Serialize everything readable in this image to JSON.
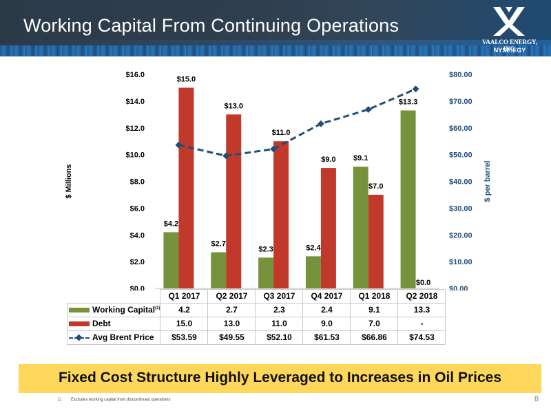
{
  "slide": {
    "title": "Working Capital From Continuing Operations",
    "page_number": "8",
    "banner": "Fixed Cost Structure Highly Leveraged to Increases in Oil Prices",
    "footnote_marker": "1)",
    "footnote": "Excludes working capital from discontinued operations"
  },
  "logo": {
    "name": "VAALCO ENERGY, INC.",
    "ticker": "NYSE:EGY",
    "icon": "vaalco-v-logo-icon"
  },
  "colors": {
    "working_capital": "#76933c",
    "debt": "#c0392b",
    "brent": "#1f4e79",
    "banner": "#ffd75a"
  },
  "chart_data": {
    "type": "bar",
    "categories": [
      "Q1 2017",
      "Q2 2017",
      "Q3 2017",
      "Q4 2017",
      "Q1 2018",
      "Q2 2018"
    ],
    "ylabel": "$ Millions",
    "y2label": "$ per barrel",
    "ylim": [
      0,
      16
    ],
    "y2lim": [
      0,
      80
    ],
    "yticks": [
      "$0.0",
      "$2.0",
      "$4.0",
      "$6.0",
      "$8.0",
      "$10.0",
      "$12.0",
      "$14.0",
      "$16.0"
    ],
    "y2ticks": [
      "$0.00",
      "$10.00",
      "$20.00",
      "$30.00",
      "$40.00",
      "$50.00",
      "$60.00",
      "$70.00",
      "$80.00"
    ],
    "series": [
      {
        "name": "Working Capital",
        "name_superscript": "(1)",
        "type": "bar",
        "axis": "left",
        "values": [
          4.2,
          2.7,
          2.3,
          2.4,
          9.1,
          13.3
        ],
        "data_labels": [
          "$4.2",
          "$2.7",
          "$2.3",
          "$2.4",
          "$9.1",
          "$13.3"
        ],
        "table_values": [
          "4.2",
          "2.7",
          "2.3",
          "2.4",
          "9.1",
          "13.3"
        ]
      },
      {
        "name": "Debt",
        "type": "bar",
        "axis": "left",
        "values": [
          15.0,
          13.0,
          11.0,
          9.0,
          7.0,
          0.0
        ],
        "data_labels": [
          "$15.0",
          "$13.0",
          "$11.0",
          "$9.0",
          "$7.0",
          "$0.0"
        ],
        "table_values": [
          "15.0",
          "13.0",
          "11.0",
          "9.0",
          "7.0",
          "-"
        ]
      },
      {
        "name": "Avg Brent Price",
        "type": "line",
        "axis": "right",
        "values": [
          53.59,
          49.55,
          52.1,
          61.53,
          66.86,
          74.53
        ],
        "table_values": [
          "$53.59",
          "$49.55",
          "$52.10",
          "$61.53",
          "$66.86",
          "$74.53"
        ]
      }
    ]
  }
}
